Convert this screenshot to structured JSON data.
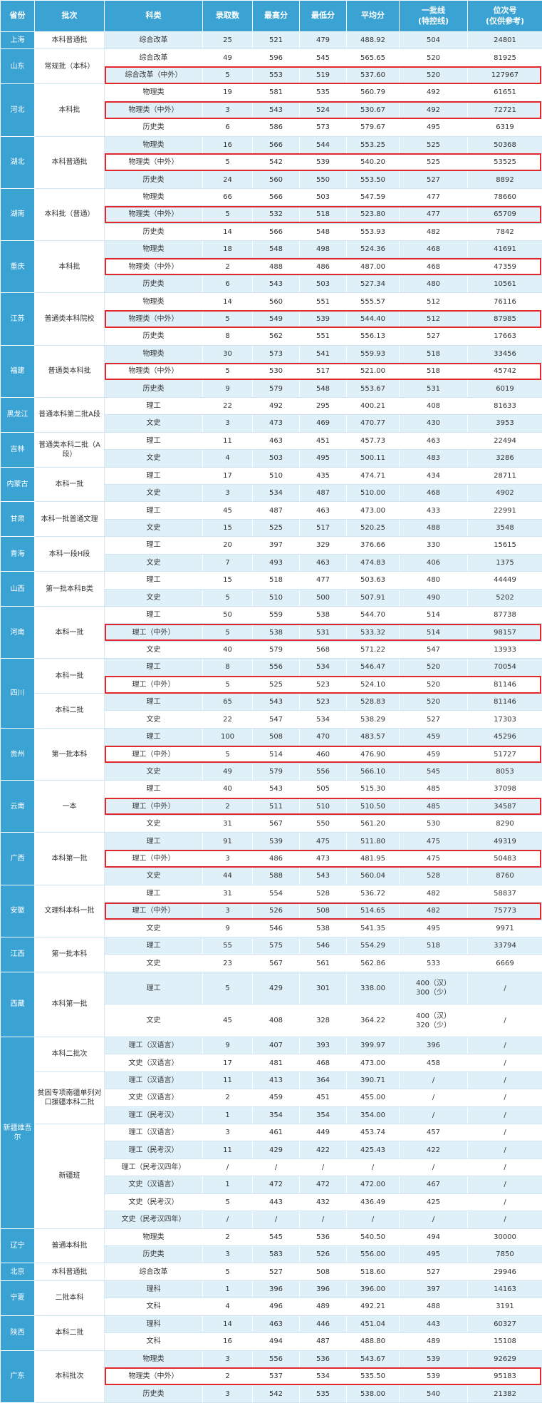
{
  "headers": [
    "省份",
    "批次",
    "科类",
    "录取数",
    "最高分",
    "最低分",
    "平均分",
    "一批线\n(特控线)",
    "位次号\n(仅供参考)"
  ],
  "colors": {
    "header_bg": "#3ba3d3",
    "row_tint": "#dff0f9",
    "highlight": "#e2282d"
  },
  "groups": [
    {
      "province": "上海",
      "batches": [
        {
          "name": "本科普通批",
          "rows": [
            [
              "综合改革",
              "25",
              "521",
              "479",
              "488.92",
              "504",
              "24801"
            ]
          ]
        }
      ]
    },
    {
      "province": "山东",
      "batches": [
        {
          "name": "常规批（本科）",
          "rows": [
            [
              "综合改革",
              "49",
              "596",
              "545",
              "565.65",
              "520",
              "81925"
            ],
            [
              "综合改革（中外）",
              "5",
              "553",
              "519",
              "537.60",
              "520",
              "127967"
            ]
          ]
        }
      ]
    },
    {
      "province": "河北",
      "batches": [
        {
          "name": "本科批",
          "rows": [
            [
              "物理类",
              "19",
              "581",
              "535",
              "560.79",
              "492",
              "61651"
            ],
            [
              "物理类（中外）",
              "3",
              "543",
              "524",
              "530.67",
              "492",
              "72721"
            ],
            [
              "历史类",
              "6",
              "586",
              "573",
              "579.67",
              "495",
              "6319"
            ]
          ]
        }
      ]
    },
    {
      "province": "湖北",
      "batches": [
        {
          "name": "本科普通批",
          "rows": [
            [
              "物理类",
              "16",
              "566",
              "544",
              "553.25",
              "525",
              "50368"
            ],
            [
              "物理类（中外）",
              "5",
              "542",
              "539",
              "540.20",
              "525",
              "53525"
            ],
            [
              "历史类",
              "24",
              "560",
              "550",
              "553.50",
              "527",
              "8892"
            ]
          ]
        }
      ]
    },
    {
      "province": "湖南",
      "batches": [
        {
          "name": "本科批（普通）",
          "rows": [
            [
              "物理类",
              "66",
              "566",
              "503",
              "547.59",
              "477",
              "78660"
            ],
            [
              "物理类（中外）",
              "5",
              "532",
              "518",
              "523.80",
              "477",
              "65709"
            ],
            [
              "历史类",
              "14",
              "566",
              "548",
              "553.93",
              "482",
              "7842"
            ]
          ]
        }
      ]
    },
    {
      "province": "重庆",
      "batches": [
        {
          "name": "本科批",
          "rows": [
            [
              "物理类",
              "18",
              "548",
              "498",
              "524.36",
              "468",
              "41691"
            ],
            [
              "物理类（中外）",
              "2",
              "488",
              "486",
              "487.00",
              "468",
              "47359"
            ],
            [
              "历史类",
              "6",
              "543",
              "503",
              "527.34",
              "480",
              "10561"
            ]
          ]
        }
      ]
    },
    {
      "province": "江苏",
      "batches": [
        {
          "name": "普通类本科院校",
          "rows": [
            [
              "物理类",
              "14",
              "560",
              "551",
              "555.57",
              "512",
              "76116"
            ],
            [
              "物理类（中外）",
              "5",
              "549",
              "539",
              "544.40",
              "512",
              "87985"
            ],
            [
              "历史类",
              "8",
              "562",
              "551",
              "556.13",
              "527",
              "17663"
            ]
          ]
        }
      ]
    },
    {
      "province": "福建",
      "batches": [
        {
          "name": "普通类本科批",
          "rows": [
            [
              "物理类",
              "30",
              "573",
              "541",
              "559.93",
              "518",
              "33456"
            ],
            [
              "物理类（中外）",
              "5",
              "530",
              "517",
              "521.00",
              "518",
              "45742"
            ],
            [
              "历史类",
              "9",
              "579",
              "548",
              "553.67",
              "531",
              "6019"
            ]
          ]
        }
      ]
    },
    {
      "province": "黑龙江",
      "batches": [
        {
          "name": "普通本科第二批A段",
          "rows": [
            [
              "理工",
              "22",
              "492",
              "295",
              "400.21",
              "408",
              "81633"
            ],
            [
              "文史",
              "3",
              "473",
              "469",
              "470.77",
              "430",
              "3953"
            ]
          ]
        }
      ]
    },
    {
      "province": "吉林",
      "batches": [
        {
          "name": "普通类本科二批（A段）",
          "rows": [
            [
              "理工",
              "11",
              "463",
              "451",
              "457.73",
              "463",
              "22494"
            ],
            [
              "文史",
              "4",
              "503",
              "495",
              "500.11",
              "483",
              "3286"
            ]
          ]
        }
      ]
    },
    {
      "province": "内蒙古",
      "batches": [
        {
          "name": "本科一批",
          "rows": [
            [
              "理工",
              "17",
              "510",
              "435",
              "474.71",
              "434",
              "28711"
            ],
            [
              "文史",
              "3",
              "534",
              "487",
              "510.00",
              "468",
              "4902"
            ]
          ]
        }
      ]
    },
    {
      "province": "甘肃",
      "batches": [
        {
          "name": "本科一批普通文理",
          "rows": [
            [
              "理工",
              "45",
              "487",
              "463",
              "473.00",
              "433",
              "22991"
            ],
            [
              "文史",
              "15",
              "525",
              "517",
              "520.25",
              "488",
              "3548"
            ]
          ]
        }
      ]
    },
    {
      "province": "青海",
      "batches": [
        {
          "name": "本科一段H段",
          "rows": [
            [
              "理工",
              "20",
              "397",
              "329",
              "376.66",
              "330",
              "15615"
            ],
            [
              "文史",
              "7",
              "493",
              "463",
              "474.83",
              "406",
              "1375"
            ]
          ]
        }
      ]
    },
    {
      "province": "山西",
      "batches": [
        {
          "name": "第一批本科B类",
          "rows": [
            [
              "理工",
              "15",
              "518",
              "477",
              "503.63",
              "480",
              "44449"
            ],
            [
              "文史",
              "5",
              "510",
              "500",
              "507.91",
              "490",
              "5202"
            ]
          ]
        }
      ]
    },
    {
      "province": "河南",
      "batches": [
        {
          "name": "本科一批",
          "rows": [
            [
              "理工",
              "50",
              "559",
              "538",
              "544.70",
              "514",
              "87738"
            ],
            [
              "理工（中外）",
              "5",
              "538",
              "531",
              "533.32",
              "514",
              "98157"
            ],
            [
              "文史",
              "40",
              "579",
              "568",
              "571.22",
              "547",
              "13933"
            ]
          ]
        }
      ]
    },
    {
      "province": "四川",
      "batches": [
        {
          "name": "本科一批",
          "rows": [
            [
              "理工",
              "8",
              "556",
              "534",
              "546.47",
              "520",
              "70054"
            ],
            [
              "理工（中外）",
              "5",
              "525",
              "523",
              "524.10",
              "520",
              "81146"
            ]
          ]
        },
        {
          "name": "本科二批",
          "rows": [
            [
              "理工",
              "65",
              "543",
              "523",
              "528.83",
              "520",
              "81146"
            ],
            [
              "文史",
              "22",
              "547",
              "534",
              "538.29",
              "527",
              "17303"
            ]
          ]
        }
      ]
    },
    {
      "province": "贵州",
      "batches": [
        {
          "name": "第一批本科",
          "rows": [
            [
              "理工",
              "100",
              "508",
              "470",
              "483.57",
              "459",
              "45296"
            ],
            [
              "理工（中外）",
              "5",
              "514",
              "460",
              "476.90",
              "459",
              "51727"
            ],
            [
              "文史",
              "49",
              "579",
              "556",
              "566.10",
              "545",
              "8053"
            ]
          ]
        }
      ]
    },
    {
      "province": "云南",
      "batches": [
        {
          "name": "一本",
          "rows": [
            [
              "理工",
              "40",
              "543",
              "505",
              "515.30",
              "485",
              "37098"
            ],
            [
              "理工（中外）",
              "2",
              "511",
              "510",
              "510.50",
              "485",
              "34587"
            ],
            [
              "文史",
              "31",
              "567",
              "550",
              "561.20",
              "530",
              "8290"
            ]
          ]
        }
      ]
    },
    {
      "province": "广西",
      "batches": [
        {
          "name": "本科第一批",
          "rows": [
            [
              "理工",
              "91",
              "539",
              "475",
              "511.80",
              "475",
              "49319"
            ],
            [
              "理工（中外）",
              "3",
              "486",
              "473",
              "481.95",
              "475",
              "50483"
            ],
            [
              "文史",
              "44",
              "588",
              "543",
              "560.04",
              "528",
              "8760"
            ]
          ]
        }
      ]
    },
    {
      "province": "安徽",
      "batches": [
        {
          "name": "文理科本科一批",
          "rows": [
            [
              "理工",
              "31",
              "554",
              "528",
              "536.72",
              "482",
              "58837"
            ],
            [
              "理工（中外）",
              "3",
              "526",
              "508",
              "514.65",
              "482",
              "75773"
            ],
            [
              "文史",
              "9",
              "546",
              "538",
              "541.35",
              "495",
              "9971"
            ]
          ]
        }
      ]
    },
    {
      "province": "江西",
      "batches": [
        {
          "name": "第一批本科",
          "rows": [
            [
              "理工",
              "55",
              "575",
              "546",
              "554.29",
              "518",
              "33794"
            ],
            [
              "文史",
              "23",
              "567",
              "561",
              "562.86",
              "533",
              "6669"
            ]
          ]
        }
      ]
    },
    {
      "province": "西藏",
      "batches": [
        {
          "name": "本科第一批",
          "rows": [
            [
              "理工",
              "5",
              "429",
              "301",
              "338.00",
              "400（汉）\n300（少）",
              "/"
            ],
            [
              "文史",
              "45",
              "408",
              "328",
              "364.22",
              "400（汉）\n320（少）",
              "/"
            ]
          ]
        }
      ]
    },
    {
      "province": "新疆维吾尔",
      "batches": [
        {
          "name": "本科二批次",
          "rows": [
            [
              "理工（汉语言）",
              "9",
              "407",
              "393",
              "399.97",
              "396",
              "/"
            ],
            [
              "文史（汉语言）",
              "17",
              "481",
              "468",
              "473.00",
              "458",
              "/"
            ]
          ]
        },
        {
          "name": "贫困专项南疆单列对口援疆本科二批",
          "rows": [
            [
              "理工（汉语言）",
              "11",
              "413",
              "364",
              "390.71",
              "/",
              "/"
            ],
            [
              "文史（汉语言）",
              "2",
              "459",
              "451",
              "455.00",
              "/",
              "/"
            ],
            [
              "理工（民考汉）",
              "1",
              "354",
              "354",
              "354.00",
              "/",
              "/"
            ]
          ]
        },
        {
          "name": "新疆班",
          "rows": [
            [
              "理工（汉语言）",
              "3",
              "461",
              "449",
              "453.74",
              "457",
              "/"
            ],
            [
              "理工（民考汉）",
              "11",
              "429",
              "422",
              "425.43",
              "422",
              "/"
            ],
            [
              "理工（民考汉四年）",
              "/",
              "/",
              "/",
              "/",
              "/",
              "/"
            ],
            [
              "文史（汉语言）",
              "1",
              "472",
              "472",
              "472.00",
              "467",
              "/"
            ],
            [
              "文史（民考汉）",
              "5",
              "443",
              "432",
              "436.49",
              "425",
              "/"
            ],
            [
              "文史（民考汉四年）",
              "/",
              "/",
              "/",
              "/",
              "/",
              "/"
            ]
          ]
        }
      ]
    },
    {
      "province": "辽宁",
      "batches": [
        {
          "name": "普通本科批",
          "rows": [
            [
              "物理类",
              "2",
              "545",
              "536",
              "540.50",
              "494",
              "30000"
            ],
            [
              "历史类",
              "3",
              "583",
              "526",
              "556.00",
              "495",
              "7850"
            ]
          ]
        }
      ]
    },
    {
      "province": "北京",
      "batches": [
        {
          "name": "本科普通批",
          "rows": [
            [
              "综合改革",
              "5",
              "527",
              "508",
              "518.60",
              "527",
              "29946"
            ]
          ]
        }
      ]
    },
    {
      "province": "宁夏",
      "batches": [
        {
          "name": "二批本科",
          "rows": [
            [
              "理科",
              "1",
              "396",
              "396",
              "396.00",
              "397",
              "14163"
            ],
            [
              "文科",
              "4",
              "496",
              "489",
              "492.21",
              "488",
              "3191"
            ]
          ]
        }
      ]
    },
    {
      "province": "陕西",
      "batches": [
        {
          "name": "本科二批",
          "rows": [
            [
              "理科",
              "14",
              "463",
              "446",
              "451.04",
              "443",
              "60327"
            ],
            [
              "文科",
              "16",
              "494",
              "487",
              "488.80",
              "489",
              "15108"
            ]
          ]
        }
      ]
    },
    {
      "province": "广东",
      "batches": [
        {
          "name": "本科批次",
          "rows": [
            [
              "物理类",
              "3",
              "556",
              "536",
              "543.67",
              "539",
              "92629"
            ],
            [
              "物理类（中外）",
              "2",
              "537",
              "534",
              "535.50",
              "539",
              "95183"
            ],
            [
              "历史类",
              "3",
              "542",
              "535",
              "538.00",
              "540",
              "21382"
            ]
          ]
        }
      ]
    }
  ]
}
